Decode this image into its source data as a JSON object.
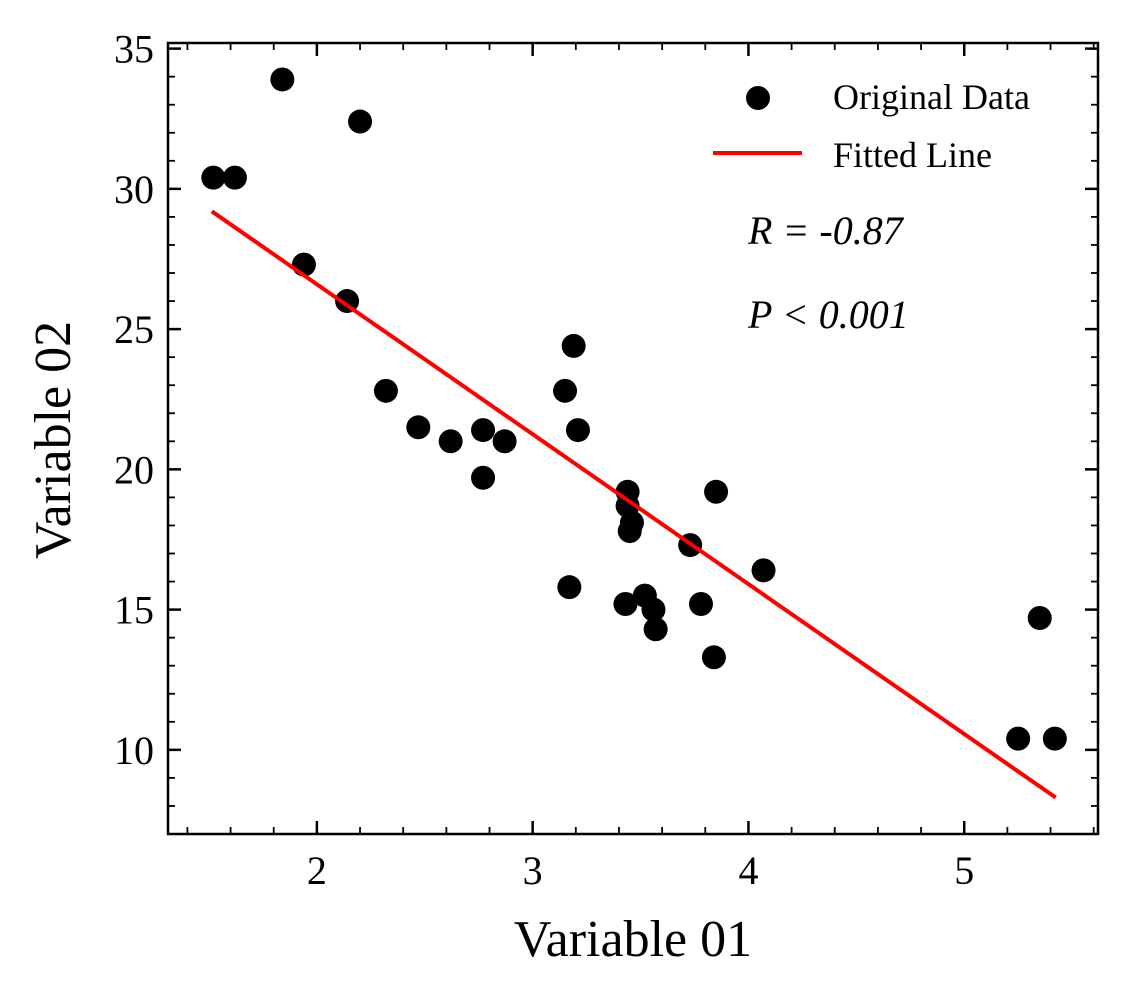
{
  "chart_data": {
    "type": "scatter",
    "title": "",
    "xlabel": "Variable 01",
    "ylabel": "Variable 02",
    "xlim": [
      1.31,
      5.62
    ],
    "ylim": [
      7.0,
      35.2
    ],
    "x_ticks": [
      2,
      3,
      4,
      5
    ],
    "y_ticks": [
      10,
      15,
      20,
      25,
      30,
      35
    ],
    "x_minor_step": 0.2,
    "y_minor_step": 1,
    "grid": false,
    "legend": {
      "placement": "top-right",
      "entries": [
        "Original Data",
        "Fitted Line"
      ]
    },
    "annotations": [
      "R = -0.87",
      "P < 0.001"
    ],
    "series": [
      {
        "kind": "scatter",
        "color": "#000000",
        "x": [
          1.52,
          1.62,
          1.84,
          1.94,
          2.14,
          2.2,
          2.32,
          2.47,
          2.62,
          2.77,
          2.77,
          2.87,
          3.15,
          3.17,
          3.19,
          3.21,
          3.43,
          3.44,
          3.44,
          3.45,
          3.46,
          3.52,
          3.56,
          3.57,
          3.73,
          3.78,
          3.84,
          3.85,
          4.07,
          5.25,
          5.35,
          5.42
        ],
        "y": [
          30.4,
          30.4,
          33.9,
          27.3,
          26.0,
          32.4,
          22.8,
          21.5,
          21.0,
          19.7,
          21.4,
          21.0,
          22.8,
          15.8,
          24.4,
          21.4,
          15.2,
          18.7,
          19.2,
          17.8,
          18.1,
          15.5,
          15.0,
          14.3,
          17.3,
          15.2,
          13.3,
          19.2,
          16.4,
          10.4,
          14.7,
          10.4
        ]
      },
      {
        "kind": "line",
        "color": "#ff0000",
        "x": [
          1.513,
          5.424
        ],
        "y": [
          29.2,
          8.3
        ]
      }
    ]
  }
}
